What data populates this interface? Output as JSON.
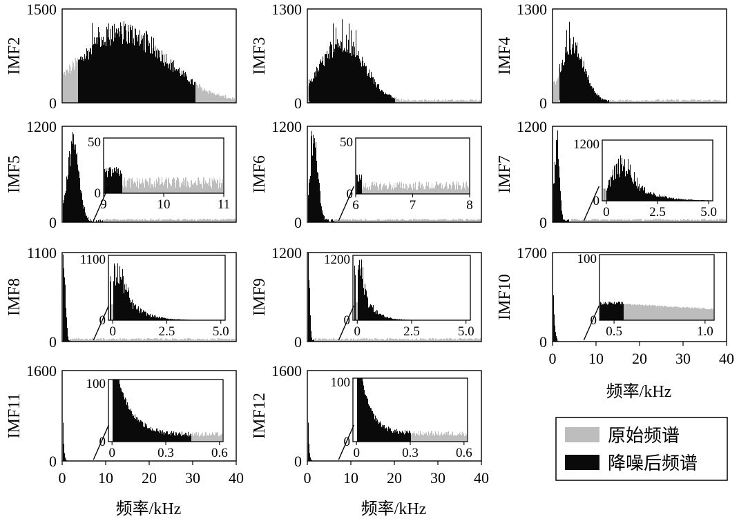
{
  "colors": {
    "original": "#bdbdbd",
    "denoised": "#0a0a0a"
  },
  "legend": {
    "original": "原始频谱",
    "denoised": "降噪后频谱"
  },
  "x_axis_label": "频率/kHz",
  "chart_data": [
    {
      "type": "bar",
      "panel": "IMF2",
      "ylabel": "IMF2",
      "yticks": [
        "0",
        "1500"
      ],
      "ylim": [
        0,
        1500
      ],
      "xlim": [
        0,
        40
      ],
      "xticks": [],
      "original_spectrum": {
        "x_range_kHz": [
          0,
          40
        ],
        "shape": "gaussian",
        "peak_x_kHz": 14,
        "peak_y": 1080,
        "width_kHz": 10,
        "max_spike": 1350
      },
      "denoised_band_kHz": [
        3.5,
        30.5
      ],
      "inset": null
    },
    {
      "type": "bar",
      "panel": "IMF3",
      "ylabel": "IMF3",
      "yticks": [
        "0",
        "1300"
      ],
      "ylim": [
        0,
        1300
      ],
      "xlim": [
        0,
        40
      ],
      "xticks": [],
      "original_spectrum": {
        "x_range_kHz": [
          0,
          40
        ],
        "shape": "gaussian",
        "peak_x_kHz": 8,
        "peak_y": 820,
        "width_kHz": 5,
        "max_spike": 1180
      },
      "denoised_band_kHz": [
        0.3,
        20
      ],
      "inset": null
    },
    {
      "type": "bar",
      "panel": "IMF4",
      "ylabel": "IMF4",
      "yticks": [
        "0",
        "1300"
      ],
      "ylim": [
        0,
        1300
      ],
      "xlim": [
        0,
        40
      ],
      "xticks": [],
      "original_spectrum": {
        "x_range_kHz": [
          0,
          40
        ],
        "shape": "gaussian",
        "peak_x_kHz": 4.5,
        "peak_y": 760,
        "width_kHz": 2.8,
        "max_spike": 1150
      },
      "denoised_band_kHz": [
        1.5,
        13
      ],
      "inset": null
    },
    {
      "type": "bar",
      "panel": "IMF5",
      "ylabel": "IMF5",
      "yticks": [
        "0",
        "1200"
      ],
      "ylim": [
        0,
        1200
      ],
      "xlim": [
        0,
        40
      ],
      "xticks": [],
      "original_spectrum": {
        "x_range_kHz": [
          0,
          40
        ],
        "shape": "gaussian",
        "peak_x_kHz": 2.5,
        "peak_y": 950,
        "width_kHz": 1.3,
        "max_spike": 1150
      },
      "denoised_band_kHz": [
        0,
        9.3
      ],
      "inset": {
        "xlim": [
          9,
          11
        ],
        "ylim": [
          0,
          50
        ],
        "yticks": [
          "50"
        ],
        "xticks": [
          "9",
          "10",
          "11"
        ],
        "tick_values": [
          9,
          10,
          11
        ],
        "noise_level": 12,
        "denoised_until": 9.3
      }
    },
    {
      "type": "bar",
      "panel": "IMF6",
      "ylabel": "IMF6",
      "yticks": [
        "0",
        "1200"
      ],
      "ylim": [
        0,
        1200
      ],
      "xlim": [
        0,
        40
      ],
      "xticks": [],
      "original_spectrum": {
        "x_range_kHz": [
          0,
          40
        ],
        "shape": "gaussian",
        "peak_x_kHz": 1.5,
        "peak_y": 1000,
        "width_kHz": 0.9,
        "max_spike": 1200
      },
      "denoised_band_kHz": [
        0,
        6.1
      ],
      "inset": {
        "xlim": [
          6,
          8
        ],
        "ylim": [
          0,
          50
        ],
        "yticks": [
          "50"
        ],
        "xticks": [
          "6",
          "7",
          "8"
        ],
        "tick_values": [
          6,
          7,
          8
        ],
        "noise_level": 9,
        "denoised_until": 6.1
      }
    },
    {
      "type": "bar",
      "panel": "IMF7",
      "ylabel": "IMF7",
      "yticks": [
        "0",
        "1200"
      ],
      "ylim": [
        0,
        1200
      ],
      "xlim": [
        0,
        40
      ],
      "xticks": [],
      "original_spectrum": {
        "x_range_kHz": [
          0,
          40
        ],
        "shape": "gaussian",
        "peak_x_kHz": 0.9,
        "peak_y": 880,
        "width_kHz": 0.6,
        "max_spike": 1150
      },
      "denoised_band_kHz": [
        0,
        4
      ],
      "inset": {
        "xlim": [
          -0.2,
          5.2
        ],
        "ylim": [
          0,
          1200
        ],
        "yticks": [
          "1200"
        ],
        "xticks": [
          "0",
          "2.5",
          "5.0"
        ],
        "tick_values": [
          0,
          2.5,
          5.0
        ],
        "peak_x": 0.8,
        "peak_y": 800,
        "width": 0.6
      }
    },
    {
      "type": "bar",
      "panel": "IMF8",
      "ylabel": "IMF8",
      "yticks": [
        "0",
        "1100"
      ],
      "ylim": [
        0,
        1100
      ],
      "xlim": [
        0,
        40
      ],
      "xticks": [],
      "original_spectrum": {
        "x_range_kHz": [
          0,
          40
        ],
        "shape": "gaussian",
        "peak_x_kHz": 0.3,
        "peak_y": 1000,
        "width_kHz": 0.4,
        "max_spike": 1100
      },
      "denoised_band_kHz": [
        0,
        2
      ],
      "inset": {
        "xlim": [
          -0.2,
          5.2
        ],
        "ylim": [
          0,
          1100
        ],
        "yticks": [
          "1100"
        ],
        "xticks": [
          "0",
          "2.5",
          "5.0"
        ],
        "tick_values": [
          0,
          2.5,
          5.0
        ],
        "peak_x": 0.2,
        "peak_y": 900,
        "width": 0.45
      }
    },
    {
      "type": "bar",
      "panel": "IMF9",
      "ylabel": "IMF9",
      "yticks": [
        "0",
        "1200"
      ],
      "ylim": [
        0,
        1200
      ],
      "xlim": [
        0,
        40
      ],
      "xticks": [],
      "original_spectrum": {
        "x_range_kHz": [
          0,
          40
        ],
        "shape": "gaussian",
        "peak_x_kHz": 0.15,
        "peak_y": 1100,
        "width_kHz": 0.3,
        "max_spike": 1200
      },
      "denoised_band_kHz": [
        0,
        1.5
      ],
      "inset": {
        "xlim": [
          -0.2,
          5.2
        ],
        "ylim": [
          0,
          1200
        ],
        "yticks": [
          "1200"
        ],
        "xticks": [
          "0",
          "2.5",
          "5.0"
        ],
        "tick_values": [
          0,
          2.5,
          5.0
        ],
        "peak_x": 0.05,
        "peak_y": 1100,
        "width": 0.3
      }
    },
    {
      "type": "bar",
      "panel": "IMF10",
      "ylabel": "IMF10",
      "yticks": [
        "0",
        "1700"
      ],
      "ylim": [
        0,
        1700
      ],
      "xlim": [
        0,
        40
      ],
      "xticks": [
        "0",
        "10",
        "20",
        "30",
        "40"
      ],
      "tick_values": [
        0,
        10,
        20,
        30,
        40
      ],
      "original_spectrum": {
        "x_range_kHz": [
          0,
          40
        ],
        "shape": "decay",
        "peak_x_kHz": 0,
        "peak_y": 1500,
        "width_kHz": 0.3,
        "max_spike": 1600
      },
      "denoised_band_kHz": [
        0,
        1
      ],
      "inset": {
        "xlim": [
          0.42,
          1.05
        ],
        "ylim": [
          0,
          100
        ],
        "yticks": [
          "100"
        ],
        "xticks": [
          "0.5",
          "1.0"
        ],
        "tick_values": [
          0.5,
          1.0
        ],
        "level_start": 27,
        "level_end": 17,
        "denoised_until": 0.55
      }
    },
    {
      "type": "bar",
      "panel": "IMF11",
      "ylabel": "IMF11",
      "yticks": [
        "0",
        "1600"
      ],
      "ylim": [
        0,
        1600
      ],
      "xlim": [
        0,
        40
      ],
      "xticks": [
        "0",
        "10",
        "20",
        "30",
        "40"
      ],
      "tick_values": [
        0,
        10,
        20,
        30,
        40
      ],
      "original_spectrum": {
        "x_range_kHz": [
          0,
          40
        ],
        "shape": "decay",
        "peak_x_kHz": 0,
        "peak_y": 1500,
        "width_kHz": 0.2,
        "max_spike": 1600
      },
      "denoised_band_kHz": [
        0,
        1
      ],
      "inset": {
        "xlim": [
          -0.02,
          0.62
        ],
        "ylim": [
          0,
          100
        ],
        "yticks": [
          "100"
        ],
        "xticks": [
          "0",
          "0.3",
          "0.6"
        ],
        "tick_values": [
          0,
          0.3,
          0.6
        ],
        "decay_scale": 0.08,
        "tail_level": 10,
        "denoised_until": 0.44
      }
    },
    {
      "type": "bar",
      "panel": "IMF12",
      "ylabel": "IMF12",
      "yticks": [
        "0",
        "1600"
      ],
      "ylim": [
        0,
        1600
      ],
      "xlim": [
        0,
        40
      ],
      "xticks": [
        "0",
        "10",
        "20",
        "30",
        "40"
      ],
      "tick_values": [
        0,
        10,
        20,
        30,
        40
      ],
      "original_spectrum": {
        "x_range_kHz": [
          0,
          40
        ],
        "shape": "decay",
        "peak_x_kHz": 0,
        "peak_y": 1500,
        "width_kHz": 0.2,
        "max_spike": 1600
      },
      "denoised_band_kHz": [
        0,
        1
      ],
      "inset": {
        "xlim": [
          -0.02,
          0.62
        ],
        "ylim": [
          0,
          100
        ],
        "yticks": [
          "100"
        ],
        "xticks": [
          "0",
          "0.3",
          "0.6"
        ],
        "tick_values": [
          0,
          0.3,
          0.6
        ],
        "decay_scale": 0.06,
        "tail_level": 11,
        "denoised_until": 0.3
      }
    }
  ]
}
